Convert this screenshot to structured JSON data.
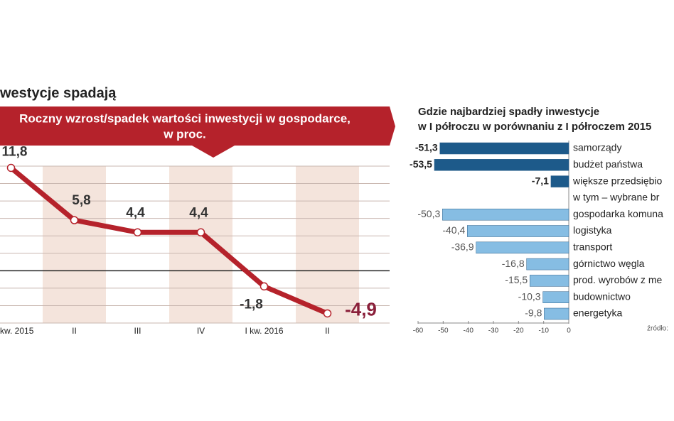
{
  "chart_data": [
    {
      "type": "line",
      "title": "westycje spadają",
      "subtitle": "Roczny wzrost/spadek wartości inwestycji w gospodarce,",
      "subtitle2": "w proc.",
      "categories": [
        "kw. 2015",
        "II",
        "III",
        "IV",
        "I kw. 2016",
        "II"
      ],
      "values": [
        11.8,
        5.8,
        4.4,
        4.4,
        -1.8,
        -4.9
      ],
      "value_labels": [
        "11,8",
        "5,8",
        "4,4",
        "4,4",
        "-1,8",
        "-4,9"
      ],
      "color": "#b5222b",
      "ylim": [
        -6,
        12
      ],
      "yticks": [
        -6,
        -4,
        -2,
        0,
        2,
        4,
        6,
        8,
        10,
        12
      ],
      "grid": true
    },
    {
      "type": "barh",
      "title": "Gdzie najbardziej spadły inwestycje",
      "subtitle": "w I półroczu w porównaniu z I półroczem 2015",
      "categories": [
        "samorządy",
        "budżet państwa",
        "większe przedsiębio",
        "w tym – wybrane br",
        "gospodarka komuna",
        "logistyka",
        "transport",
        "górnictwo węgla",
        "prod. wyrobów z me",
        "budownictwo",
        "energetyka"
      ],
      "values": [
        -51.3,
        -53.5,
        -7.1,
        null,
        -50.3,
        -40.4,
        -36.9,
        -16.8,
        -15.5,
        -10.3,
        -9.8
      ],
      "value_labels": [
        "-51,3",
        "-53,5",
        "-7,1",
        null,
        "-50,3",
        "-40,4",
        "-36,9",
        "-16,8",
        "-15,5",
        "-10,3",
        "-9,8"
      ],
      "colors": [
        "#1d5a8a",
        "#1d5a8a",
        "#1d5a8a",
        null,
        "#86bde3",
        "#86bde3",
        "#86bde3",
        "#86bde3",
        "#86bde3",
        "#86bde3",
        "#86bde3"
      ],
      "xlim": [
        -60,
        0
      ],
      "xticks": [
        -60,
        -50,
        -40,
        -30,
        -20,
        -10,
        0
      ],
      "source": "źródło:"
    }
  ]
}
